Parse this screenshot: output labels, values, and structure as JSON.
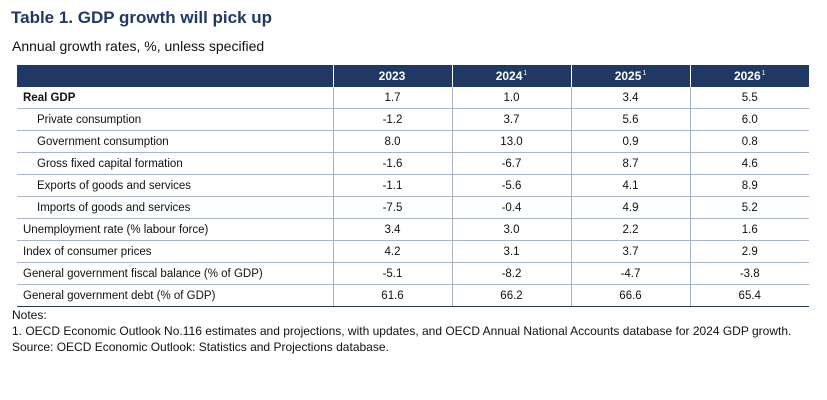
{
  "title": "Table 1. GDP growth will pick up",
  "subtitle": "Annual growth rates, %, unless specified",
  "table": {
    "columns": [
      {
        "year": "2023",
        "sup": ""
      },
      {
        "year": "2024",
        "sup": "1"
      },
      {
        "year": "2025",
        "sup": "1"
      },
      {
        "year": "2026",
        "sup": "1"
      }
    ],
    "rows": [
      {
        "label": "Real GDP",
        "values": [
          "1.7",
          "1.0",
          "3.4",
          "5.5"
        ]
      },
      {
        "label": "Private consumption",
        "values": [
          "-1.2",
          "3.7",
          "5.6",
          "6.0"
        ]
      },
      {
        "label": "Government consumption",
        "values": [
          "8.0",
          "13.0",
          "0.9",
          "0.8"
        ]
      },
      {
        "label": "Gross fixed capital formation",
        "values": [
          "-1.6",
          "-6.7",
          "8.7",
          "4.6"
        ]
      },
      {
        "label": "Exports of goods and services",
        "values": [
          "-1.1",
          "-5.6",
          "4.1",
          "8.9"
        ]
      },
      {
        "label": "Imports of goods and services",
        "values": [
          "-7.5",
          "-0.4",
          "4.9",
          "5.2"
        ]
      },
      {
        "label": "Unemployment rate (% labour force)",
        "values": [
          "3.4",
          "3.0",
          "2.2",
          "1.6"
        ]
      },
      {
        "label": "Index of consumer prices",
        "values": [
          "4.2",
          "3.1",
          "3.7",
          "2.9"
        ]
      },
      {
        "label": "General government fiscal balance (% of GDP)",
        "values": [
          "-5.1",
          "-8.2",
          "-4.7",
          "-3.8"
        ]
      },
      {
        "label": "General government debt (% of GDP)",
        "values": [
          "61.6",
          "66.2",
          "66.6",
          "65.4"
        ]
      }
    ]
  },
  "notes": {
    "heading": "Notes:",
    "note1": "1. OECD Economic Outlook No.116 estimates and projections, with updates, and OECD Annual National Accounts database for 2024 GDP growth.",
    "source": "Source: OECD Economic Outlook: Statistics and Projections database."
  },
  "colors": {
    "header_bg": "#1f3864",
    "title": "#1f3864",
    "rule": "#a8b4c8"
  }
}
